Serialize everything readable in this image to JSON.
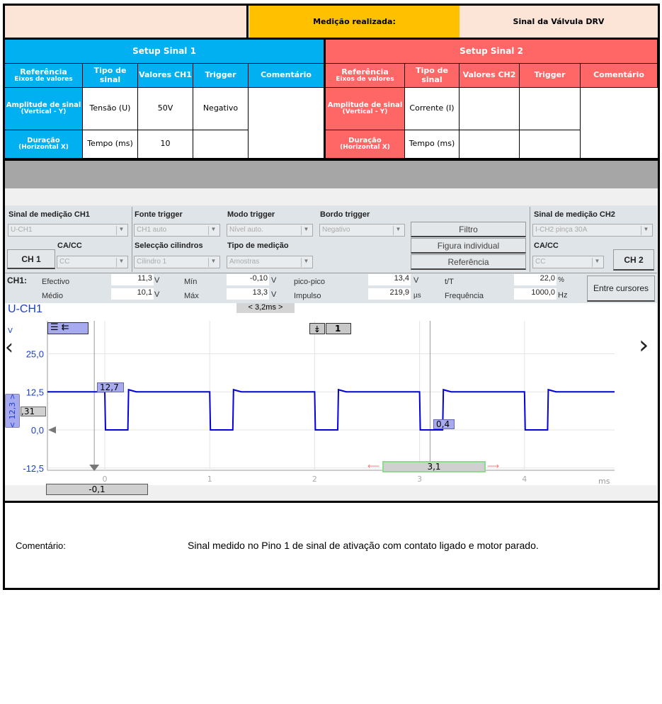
{
  "header": {
    "measured_label": "Medição realizada:",
    "signal_name": "Sinal da Válvula DRV"
  },
  "setup1": {
    "title": "Setup Sinal 1",
    "cols": [
      "Referência",
      "Eixos de valores",
      "Tipo de sinal",
      "Valores CH1",
      "Trigger",
      "Comentário"
    ],
    "row1": {
      "ref": "Amplitude de sinal",
      "ref_sub": "(Vertical - Y)",
      "type": "Tensão (U)",
      "value": "50V",
      "trigger": "Negativo"
    },
    "row2": {
      "ref": "Duração",
      "ref_sub": "(Horizontal X)",
      "type": "Tempo (ms)",
      "value": "10",
      "trigger": ""
    }
  },
  "setup2": {
    "title": "Setup Sinal 2",
    "cols": [
      "Referência",
      "Eixos de valores",
      "Tipo de sinal",
      "Valores CH2",
      "Trigger",
      "Comentário"
    ],
    "row1": {
      "ref": "Amplitude de sinal",
      "ref_sub": "(Vertical - Y)",
      "type": "Corrente (I)",
      "value": "",
      "trigger": ""
    },
    "row2": {
      "ref": "Duração",
      "ref_sub": "(Horizontal X)",
      "type": "Tempo (ms)",
      "value": "",
      "trigger": ""
    }
  },
  "scope": {
    "ch1_signal_label": "Sinal de medição CH1",
    "ch1_signal": "U-CH1",
    "trigger_source_label": "Fonte trigger",
    "trigger_source": "CH1 auto",
    "trigger_mode_label": "Modo trigger",
    "trigger_mode": "Nível auto.",
    "trigger_edge_label": "Bordo trigger",
    "trigger_edge": "Negativo",
    "cacc_label": "CA/CC",
    "cacc1": "CC",
    "ch1_button": "CH 1",
    "cyl_label": "Selecção cilindros",
    "cyl": "Cilindro 1",
    "meas_type_label": "Tipo de medição",
    "meas_type": "Amostras",
    "filter": "Filtro",
    "single": "Figura individual",
    "reference": "Referência",
    "ch2_signal_label": "Sinal de medição CH2",
    "ch2_signal": "I-CH2 pinça 30A",
    "cacc2": "CC",
    "ch2_button": "CH 2",
    "meas": {
      "ch": "CH1:",
      "efectivo_label": "Efectivo",
      "efectivo": "11,3",
      "medio_label": "Médio",
      "medio": "10,1",
      "min_label": "Mín",
      "min": "-0,10",
      "max_label": "Máx",
      "max": "13,3",
      "pp_label": "pico-pico",
      "pp": "13,4",
      "impulso_label": "Impulso",
      "impulso": "219,9",
      "tT_label": "t/T",
      "tT": "22,0",
      "freq_label": "Frequência",
      "freq": "1000,0",
      "unit_v": "V",
      "unit_us": "µs",
      "unit_pct": "%",
      "unit_hz": "Hz"
    },
    "between_cursors": "Entre cursores",
    "channel_title": "U-CH1",
    "timebase": "< 3,2ms >",
    "trigger_badge": "1",
    "y_unit": "V",
    "ms_unit": "ms",
    "offset_label": "< 12,3 >",
    "offset_value": ",31",
    "cursor1_label": "12,7",
    "cursor2_label": "0,4",
    "cursor1_time": "-0,1",
    "delta": "3,1"
  },
  "chart_data": {
    "type": "line",
    "xlabel": "ms",
    "ylabel": "V",
    "x_ticks": [
      "0",
      "1",
      "2",
      "3",
      "4"
    ],
    "y_ticks": [
      "25,0",
      "12,5",
      "0,0",
      "-12,5"
    ],
    "xlim": [
      -0.6,
      4.85
    ],
    "ylim": [
      -13,
      35
    ],
    "series": [
      {
        "color": "#0000e0",
        "period_ms": 1.0,
        "high_v": 12.5,
        "low_v": 0.0,
        "low_width_ms": 0.22,
        "first_fall_ms": 0.0
      }
    ],
    "cursors_ms": [
      -0.1,
      3.1
    ]
  },
  "comment": {
    "label": "Comentário:",
    "text": "Sinal medido no Pino 1 de sinal de ativação com contato ligado e motor parado."
  }
}
